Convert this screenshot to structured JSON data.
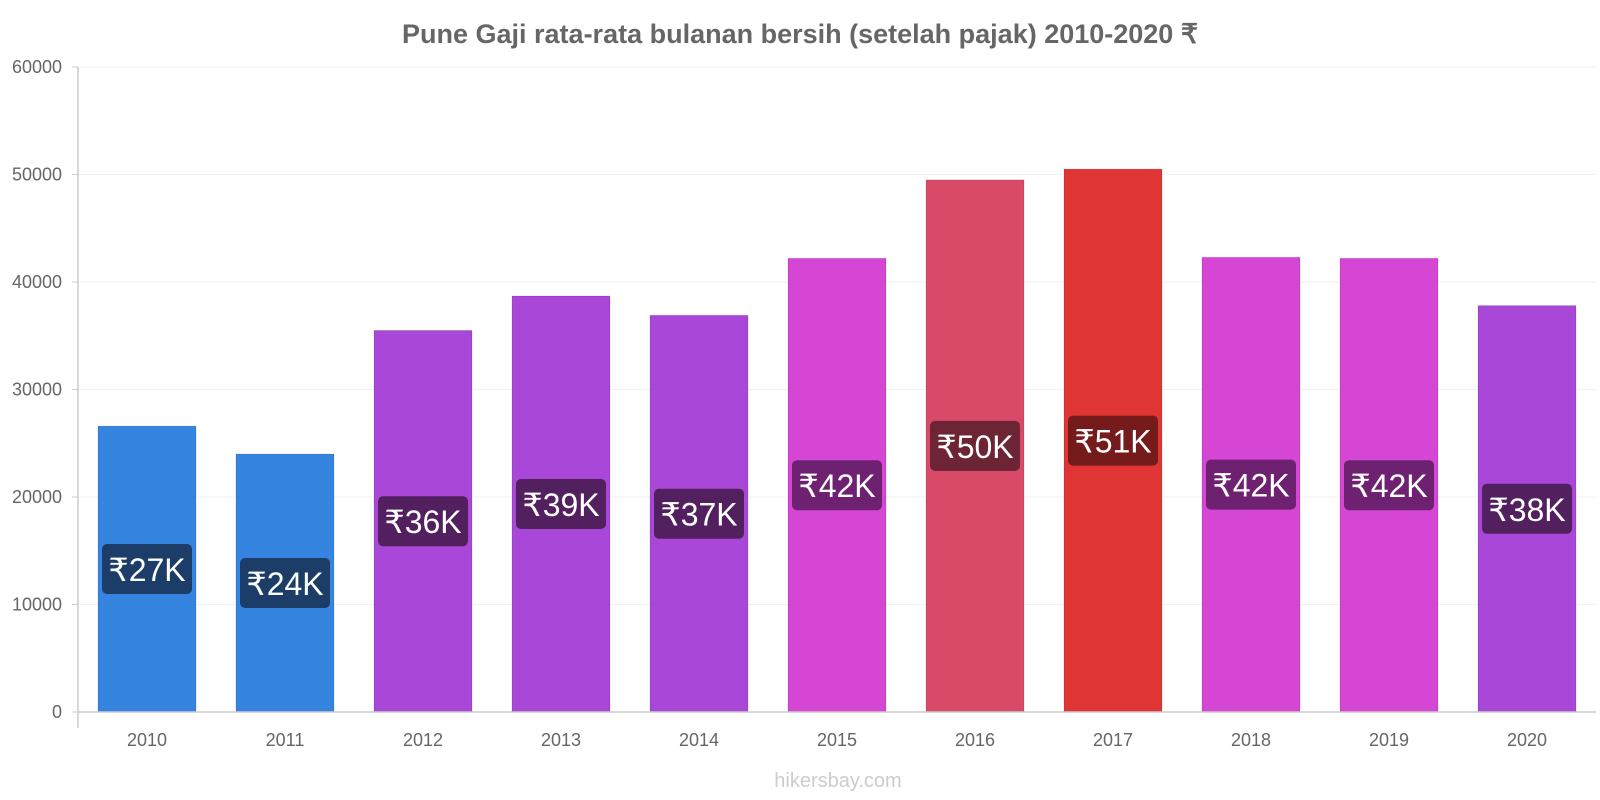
{
  "chart_data": {
    "type": "bar",
    "title": "Pune Gaji rata-rata bulanan bersih (setelah pajak) 2010-2020 ₹",
    "xlabel": "",
    "ylabel": "",
    "categories": [
      "2010",
      "2011",
      "2012",
      "2013",
      "2014",
      "2015",
      "2016",
      "2017",
      "2018",
      "2019",
      "2020"
    ],
    "values": [
      26600,
      24000,
      35500,
      38700,
      36900,
      42200,
      49500,
      50500,
      42300,
      42200,
      37800
    ],
    "data_labels": [
      "₹27K",
      "₹24K",
      "₹36K",
      "₹39K",
      "₹37K",
      "₹42K",
      "₹50K",
      "₹51K",
      "₹42K",
      "₹42K",
      "₹38K"
    ],
    "bar_colors": [
      "#3584e0",
      "#3584e0",
      "#a847d8",
      "#a847d8",
      "#a847d8",
      "#d546d4",
      "#d84a68",
      "#e03535",
      "#d546d4",
      "#d546d4",
      "#a847d8"
    ],
    "label_colors": [
      "#1b3d67",
      "#1b3d67",
      "#52205f",
      "#52205f",
      "#52205f",
      "#6d2170",
      "#6d2434",
      "#751b1b",
      "#6d2170",
      "#6d2170",
      "#52205f"
    ],
    "ylim": [
      0,
      60000
    ],
    "yticks": [
      0,
      10000,
      20000,
      30000,
      40000,
      50000,
      60000
    ],
    "grid": true,
    "legend": "none"
  },
  "footer": {
    "source": "hikersbay.com"
  }
}
